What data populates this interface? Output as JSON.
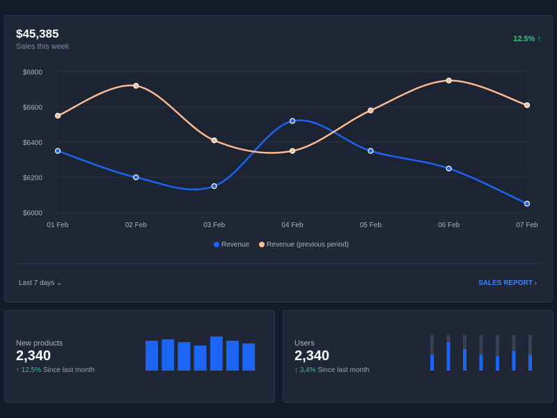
{
  "header": {
    "total": "$45,385",
    "subtitle": "Sales this week",
    "change": "12.5%",
    "change_icon": "arrow-up-icon"
  },
  "footer": {
    "range": "Last 7 days",
    "report": "SALES REPORT"
  },
  "colors": {
    "revenue": "#1c64f2",
    "previous": "#fdba8c",
    "positive": "#31c48d",
    "bar": "#1c64f2",
    "track": "#374151"
  },
  "chart_data": [
    {
      "type": "line",
      "x": [
        "01 Feb",
        "02 Feb",
        "03 Feb",
        "04 Feb",
        "05 Feb",
        "06 Feb",
        "07 Feb"
      ],
      "yticks": [
        "$6000",
        "$6200",
        "$6400",
        "$6600",
        "$6800"
      ],
      "ylim": [
        6000,
        6800
      ],
      "grid": true,
      "legend": "bottom",
      "series": [
        {
          "name": "Revenue",
          "values": [
            6350,
            6200,
            6150,
            6520,
            6350,
            6250,
            6050
          ]
        },
        {
          "name": "Revenue (previous period)",
          "values": [
            6550,
            6720,
            6410,
            6350,
            6580,
            6750,
            6610
          ]
        }
      ]
    },
    {
      "type": "bar",
      "values": [
        43,
        45,
        41,
        36,
        49,
        43,
        39
      ]
    },
    {
      "type": "bar",
      "values": [
        0.45,
        0.8,
        0.6,
        0.45,
        0.4,
        0.55,
        0.45
      ],
      "ylim": [
        0,
        1
      ]
    }
  ],
  "new_products": {
    "label": "New products",
    "value": "2,340",
    "change": "↑ 12.5%",
    "since": "Since last month"
  },
  "users": {
    "label": "Users",
    "value": "2,340",
    "change": "↑ 3,4%",
    "since": "Since last month"
  }
}
